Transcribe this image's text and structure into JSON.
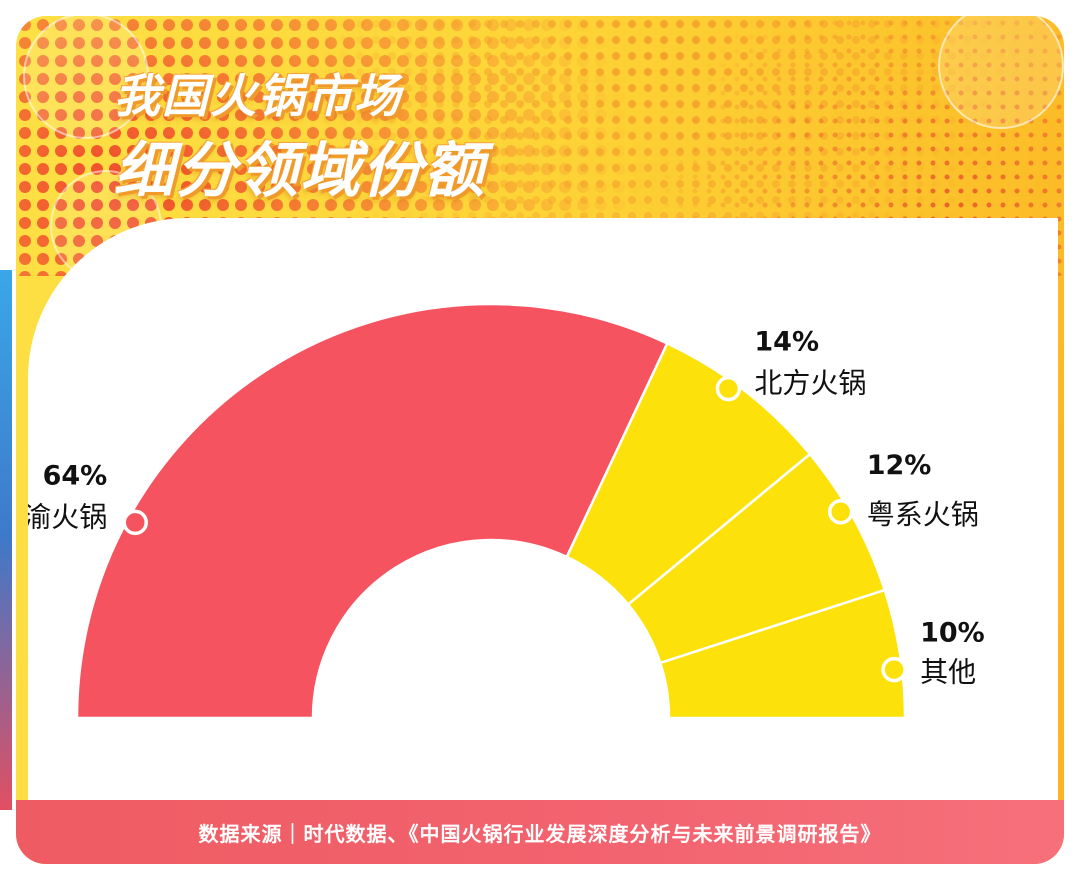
{
  "title": {
    "line1": "我国火锅市场",
    "line2": "细分领域份额"
  },
  "source": "数据来源｜时代数据、《中国火锅行业发展深度分析与未来前景调研报告》",
  "colors": {
    "primary": "#f5535f",
    "secondary": "#fde10b",
    "background_yellow": "#fdd437",
    "footer": "#ef5b62"
  },
  "chart_data": {
    "type": "pie",
    "style": "semi-donut",
    "categories": [
      "川渝火锅",
      "北方火锅",
      "粤系火锅",
      "其他"
    ],
    "values": [
      64,
      14,
      12,
      10
    ],
    "value_labels": [
      "64%",
      "14%",
      "12%",
      "10%"
    ],
    "unit": "%",
    "slice_colors": [
      "#f5535f",
      "#fde10b",
      "#fde10b",
      "#fde10b"
    ]
  }
}
